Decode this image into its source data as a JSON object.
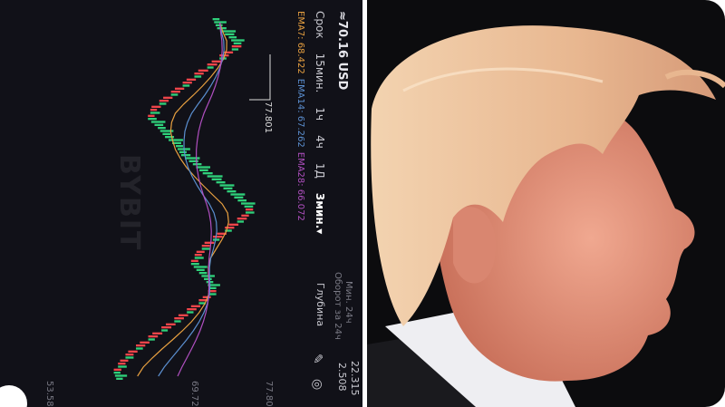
{
  "chart_panel": {
    "watermark": "BYBIT",
    "price_usd": "≈70.16 USD",
    "timeframe_label": "Срок",
    "timeframes": [
      "15мин.",
      "1ч",
      "4ч",
      "1Д",
      "3мин.▾"
    ],
    "ema": [
      {
        "label": "EMA7: 68.422",
        "color": "#e8a040"
      },
      {
        "label": "EMA14: 67.262",
        "color": "#5b8fd0"
      },
      {
        "label": "EMA28: 66.072",
        "color": "#b04fc0"
      }
    ],
    "depth_label": "Глубина",
    "stats": {
      "low_label": "Мин. 24ч",
      "low_value": "22.315",
      "turnover_label": "Оборот за 24ч",
      "turnover_value": "2.508"
    },
    "max_marker": "77.801",
    "axis_ticks": [
      "53.58",
      "69.72",
      "77.80"
    ],
    "colors": {
      "up": "#2fd07a",
      "down": "#f0454a",
      "background": "#111118"
    },
    "closes": [
      72.5,
      73.8,
      74.6,
      73.2,
      71.9,
      70.4,
      69.1,
      67.8,
      66.5,
      65.2,
      64.8,
      65.9,
      66.7,
      67.9,
      68.5,
      69.8,
      70.9,
      72.4,
      73.6,
      74.8,
      75.9,
      75.2,
      73.8,
      72.5,
      71.1,
      70.2,
      69.6,
      70.5,
      71.3,
      71.8,
      70.9,
      69.6,
      68.2,
      66.8,
      65.3,
      63.9,
      62.6,
      61.7,
      61.0,
      61.4
    ]
  },
  "photo_panel": {
    "subject": "profile portrait"
  }
}
